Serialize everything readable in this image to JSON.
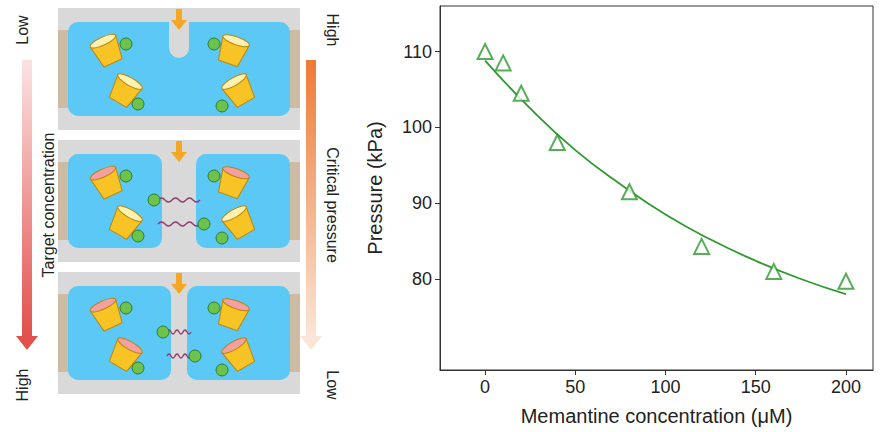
{
  "chart_data": {
    "type": "scatter",
    "x_label": "Memantine concentration (μM)",
    "y_label": "Pressure (kPa)",
    "xlim": [
      -25,
      215
    ],
    "xticks": [
      0,
      50,
      100,
      150,
      200
    ],
    "ylim": [
      68,
      116
    ],
    "yticks": [
      80,
      90,
      100,
      110
    ],
    "grid": false,
    "series": [
      {
        "type": "scatter",
        "marker": "triangle",
        "color": "#2e9a2e",
        "x": [
          0,
          10,
          20,
          40,
          80,
          120,
          160,
          200
        ],
        "values": [
          110,
          108.5,
          104.5,
          98,
          91.5,
          84.3,
          81,
          79.7
        ]
      },
      {
        "type": "line",
        "line_style": "solid",
        "color": "#2e9a2e",
        "x": [
          0,
          25,
          50,
          75,
          100,
          125,
          150,
          175,
          200
        ],
        "values": [
          108.8,
          102.5,
          97,
          92.5,
          88.5,
          85.2,
          82.4,
          80,
          78
        ]
      }
    ]
  },
  "diagram": {
    "left_arrow": {
      "label": "Target concentration",
      "start": "Low",
      "end": "High"
    },
    "right_arrow": {
      "label": "Critical pressure",
      "start": "High",
      "end": "Low"
    }
  }
}
